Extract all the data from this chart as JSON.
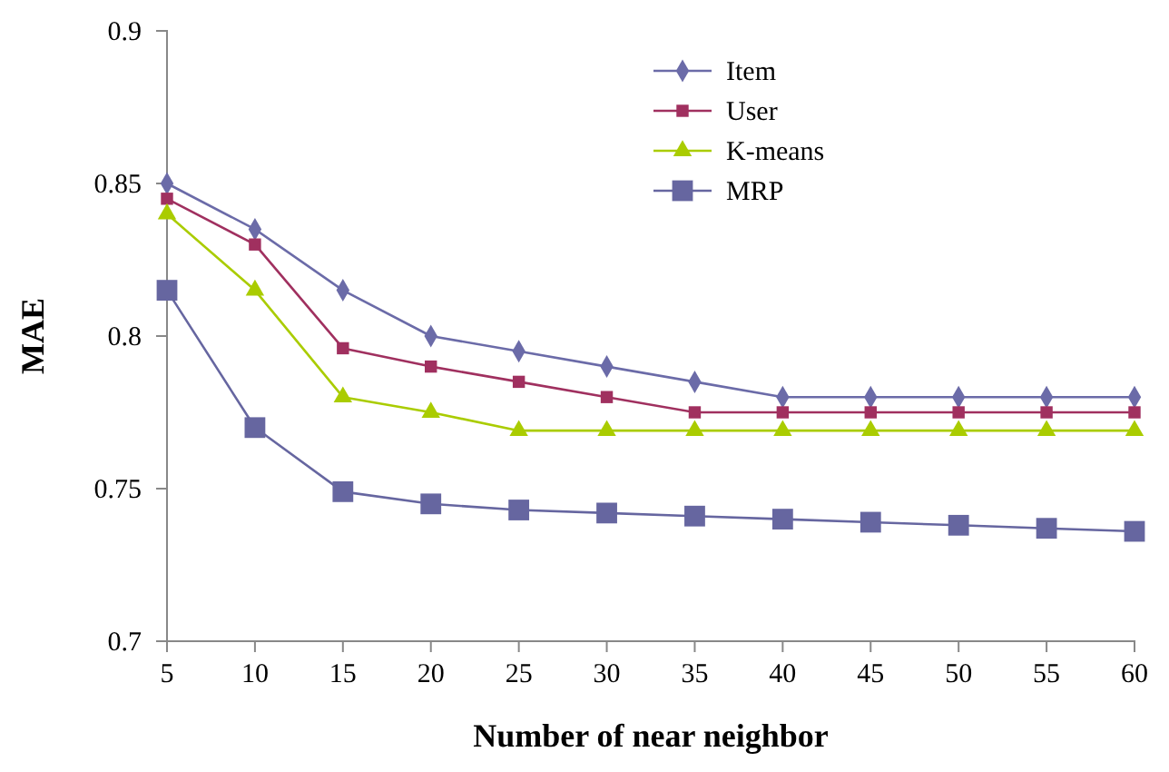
{
  "chart_data": {
    "type": "line",
    "xlabel": "Number of near neighbor",
    "ylabel": "MAE",
    "x": [
      5,
      10,
      15,
      20,
      25,
      30,
      35,
      40,
      45,
      50,
      55,
      60
    ],
    "xlim": [
      5,
      60
    ],
    "xticks": [
      5,
      10,
      15,
      20,
      25,
      30,
      35,
      40,
      45,
      50,
      55,
      60
    ],
    "ylim": [
      0.7,
      0.9
    ],
    "yticks": [
      0.7,
      0.75,
      0.8,
      0.85,
      0.9
    ],
    "grid": false,
    "legend": "top right",
    "series": [
      {
        "name": "Item",
        "color": "#6b6ba8",
        "marker": "diamond",
        "values": [
          0.85,
          0.835,
          0.815,
          0.8,
          0.795,
          0.79,
          0.785,
          0.78,
          0.78,
          0.78,
          0.78,
          0.78
        ]
      },
      {
        "name": "User",
        "color": "#a0305f",
        "marker": "square",
        "values": [
          0.845,
          0.83,
          0.796,
          0.79,
          0.785,
          0.78,
          0.775,
          0.775,
          0.775,
          0.775,
          0.775,
          0.775
        ]
      },
      {
        "name": "K-means",
        "color": "#aacc00",
        "marker": "triangle",
        "values": [
          0.84,
          0.815,
          0.78,
          0.775,
          0.769,
          0.769,
          0.769,
          0.769,
          0.769,
          0.769,
          0.769,
          0.769
        ]
      },
      {
        "name": "MRP",
        "color": "#6666a0",
        "marker": "square",
        "values": [
          0.815,
          0.77,
          0.749,
          0.745,
          0.743,
          0.742,
          0.741,
          0.74,
          0.739,
          0.738,
          0.737,
          0.736
        ]
      }
    ]
  }
}
